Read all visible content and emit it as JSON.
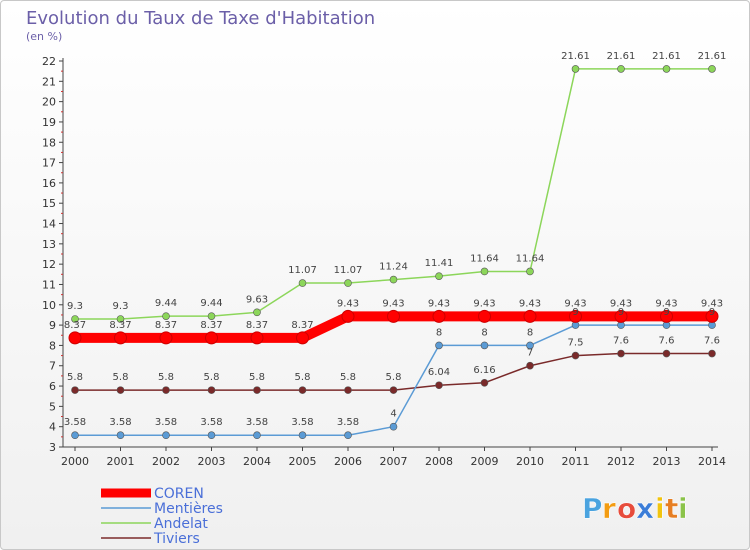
{
  "chart_data": {
    "type": "line",
    "title": "Evolution du Taux de Taxe d'Habitation",
    "subtitle": "(en %)",
    "x": [
      "2000",
      "2001",
      "2002",
      "2003",
      "2004",
      "2005",
      "2006",
      "2007",
      "2008",
      "2009",
      "2010",
      "2011",
      "2012",
      "2013",
      "2014"
    ],
    "ylim": [
      3,
      22
    ],
    "yticks": [
      3,
      4,
      5,
      6,
      7,
      8,
      9,
      10,
      11,
      12,
      13,
      14,
      15,
      16,
      17,
      18,
      19,
      20,
      21,
      22
    ],
    "grid": false,
    "legend_position": "bottom-left",
    "series": [
      {
        "name": "COREN",
        "color": "#ff0000",
        "values": [
          8.37,
          8.37,
          8.37,
          8.37,
          8.37,
          8.37,
          9.43,
          9.43,
          9.43,
          9.43,
          9.43,
          9.43,
          9.43,
          9.43,
          9.43
        ],
        "labels": [
          "8.37",
          "8.37",
          "8.37",
          "8.37",
          "8.37",
          "8.37",
          "9.43",
          "9.43",
          "9.43",
          "9.43",
          "9.43",
          "9.43",
          "9.43",
          "9.43",
          "9.43"
        ]
      },
      {
        "name": "Mentières",
        "color": "#5b9bd5",
        "values": [
          3.58,
          3.58,
          3.58,
          3.58,
          3.58,
          3.58,
          3.58,
          4,
          8,
          8,
          8,
          9,
          9,
          9,
          9
        ],
        "labels": [
          "3.58",
          "3.58",
          "3.58",
          "3.58",
          "3.58",
          "3.58",
          "3.58",
          "4",
          "8",
          "8",
          "8",
          "9",
          "9",
          "9",
          "9"
        ]
      },
      {
        "name": "Andelat",
        "color": "#8cd65a",
        "values": [
          9.3,
          9.3,
          9.44,
          9.44,
          9.63,
          11.07,
          11.07,
          11.24,
          11.41,
          11.64,
          11.64,
          21.61,
          21.61,
          21.61,
          21.61
        ],
        "labels": [
          "9.3",
          "9.3",
          "9.44",
          "9.44",
          "9.63",
          "11.07",
          "11.07",
          "11.24",
          "11.41",
          "11.64",
          "11.64",
          "21.61",
          "21.61",
          "21.61",
          "21.61"
        ]
      },
      {
        "name": "Tiviers",
        "color": "#7a2a2a",
        "values": [
          5.8,
          5.8,
          5.8,
          5.8,
          5.8,
          5.8,
          5.8,
          5.8,
          6.04,
          6.16,
          7,
          7.5,
          7.6,
          7.6,
          7.6
        ],
        "labels": [
          "5.8",
          "5.8",
          "5.8",
          "5.8",
          "5.8",
          "5.8",
          "5.8",
          "5.8",
          "6.04",
          "6.16",
          "7",
          "7.5",
          "7.6",
          "7.6",
          "7.6"
        ]
      }
    ]
  },
  "legend": {
    "items": [
      "COREN",
      "Mentières",
      "Andelat",
      "Tiviers"
    ]
  },
  "logo": {
    "letters": [
      "P",
      "r",
      "o",
      "x",
      "i",
      "t",
      "i"
    ],
    "colors": [
      "#4aa3df",
      "#f39c12",
      "#e74c3c",
      "#3b7dd8",
      "#f1c40f",
      "#e67e22",
      "#8bc34a"
    ]
  }
}
